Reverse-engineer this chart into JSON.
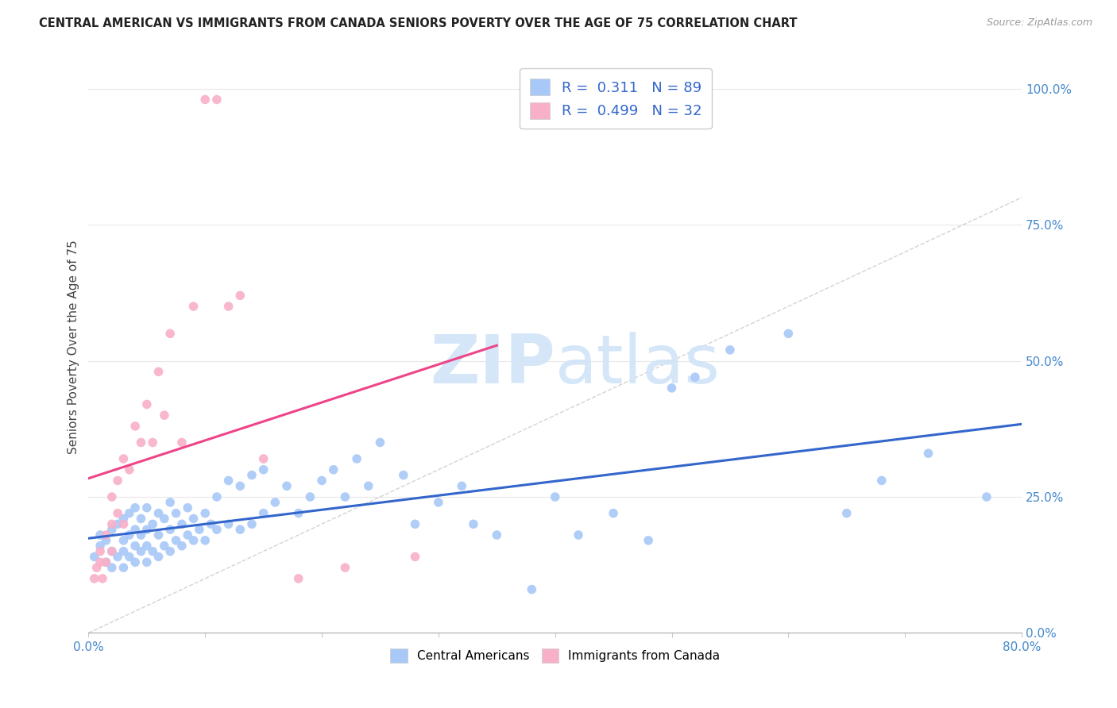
{
  "title": "CENTRAL AMERICAN VS IMMIGRANTS FROM CANADA SENIORS POVERTY OVER THE AGE OF 75 CORRELATION CHART",
  "source": "Source: ZipAtlas.com",
  "ylabel": "Seniors Poverty Over the Age of 75",
  "xlim": [
    0.0,
    0.8
  ],
  "ylim": [
    0.0,
    1.05
  ],
  "x_ticks": [
    0.0,
    0.1,
    0.2,
    0.3,
    0.4,
    0.5,
    0.6,
    0.7,
    0.8
  ],
  "x_tick_labels": [
    "0.0%",
    "",
    "",
    "",
    "",
    "",
    "",
    "",
    "80.0%"
  ],
  "y_tick_labels_right": [
    "0.0%",
    "25.0%",
    "50.0%",
    "75.0%",
    "100.0%"
  ],
  "y_ticks_right": [
    0.0,
    0.25,
    0.5,
    0.75,
    1.0
  ],
  "R_blue": 0.311,
  "N_blue": 89,
  "R_pink": 0.499,
  "N_pink": 32,
  "blue_color": "#a8c8f8",
  "pink_color": "#f8b0c8",
  "blue_line_color": "#3366cc",
  "pink_line_color": "#ee4488",
  "diagonal_line_color": "#c8c8c8",
  "watermark_color": "#d0e4f8",
  "background_color": "#ffffff",
  "grid_color": "#e8e8e8",
  "blue_scatter_x": [
    0.005,
    0.01,
    0.01,
    0.015,
    0.015,
    0.02,
    0.02,
    0.02,
    0.025,
    0.025,
    0.03,
    0.03,
    0.03,
    0.03,
    0.035,
    0.035,
    0.035,
    0.04,
    0.04,
    0.04,
    0.04,
    0.045,
    0.045,
    0.045,
    0.05,
    0.05,
    0.05,
    0.05,
    0.055,
    0.055,
    0.06,
    0.06,
    0.06,
    0.065,
    0.065,
    0.07,
    0.07,
    0.07,
    0.075,
    0.075,
    0.08,
    0.08,
    0.085,
    0.085,
    0.09,
    0.09,
    0.095,
    0.1,
    0.1,
    0.105,
    0.11,
    0.11,
    0.12,
    0.12,
    0.13,
    0.13,
    0.14,
    0.14,
    0.15,
    0.15,
    0.16,
    0.17,
    0.18,
    0.19,
    0.2,
    0.21,
    0.22,
    0.23,
    0.24,
    0.25,
    0.27,
    0.28,
    0.3,
    0.32,
    0.33,
    0.35,
    0.38,
    0.4,
    0.42,
    0.45,
    0.48,
    0.5,
    0.52,
    0.55,
    0.6,
    0.65,
    0.68,
    0.72,
    0.77
  ],
  "blue_scatter_y": [
    0.14,
    0.16,
    0.18,
    0.13,
    0.17,
    0.12,
    0.15,
    0.19,
    0.14,
    0.2,
    0.12,
    0.15,
    0.17,
    0.21,
    0.14,
    0.18,
    0.22,
    0.13,
    0.16,
    0.19,
    0.23,
    0.15,
    0.18,
    0.21,
    0.13,
    0.16,
    0.19,
    0.23,
    0.15,
    0.2,
    0.14,
    0.18,
    0.22,
    0.16,
    0.21,
    0.15,
    0.19,
    0.24,
    0.17,
    0.22,
    0.16,
    0.2,
    0.18,
    0.23,
    0.17,
    0.21,
    0.19,
    0.17,
    0.22,
    0.2,
    0.19,
    0.25,
    0.2,
    0.28,
    0.19,
    0.27,
    0.2,
    0.29,
    0.22,
    0.3,
    0.24,
    0.27,
    0.22,
    0.25,
    0.28,
    0.3,
    0.25,
    0.32,
    0.27,
    0.35,
    0.29,
    0.2,
    0.24,
    0.27,
    0.2,
    0.18,
    0.08,
    0.25,
    0.18,
    0.22,
    0.17,
    0.45,
    0.47,
    0.52,
    0.55,
    0.22,
    0.28,
    0.33,
    0.25
  ],
  "pink_scatter_x": [
    0.005,
    0.007,
    0.01,
    0.01,
    0.012,
    0.015,
    0.015,
    0.02,
    0.02,
    0.02,
    0.025,
    0.025,
    0.03,
    0.03,
    0.035,
    0.04,
    0.045,
    0.05,
    0.055,
    0.06,
    0.065,
    0.07,
    0.08,
    0.09,
    0.1,
    0.11,
    0.12,
    0.13,
    0.15,
    0.18,
    0.22,
    0.28
  ],
  "pink_scatter_y": [
    0.1,
    0.12,
    0.13,
    0.15,
    0.1,
    0.13,
    0.18,
    0.15,
    0.2,
    0.25,
    0.22,
    0.28,
    0.2,
    0.32,
    0.3,
    0.38,
    0.35,
    0.42,
    0.35,
    0.48,
    0.4,
    0.55,
    0.35,
    0.6,
    0.98,
    0.98,
    0.6,
    0.62,
    0.32,
    0.1,
    0.12,
    0.14
  ]
}
